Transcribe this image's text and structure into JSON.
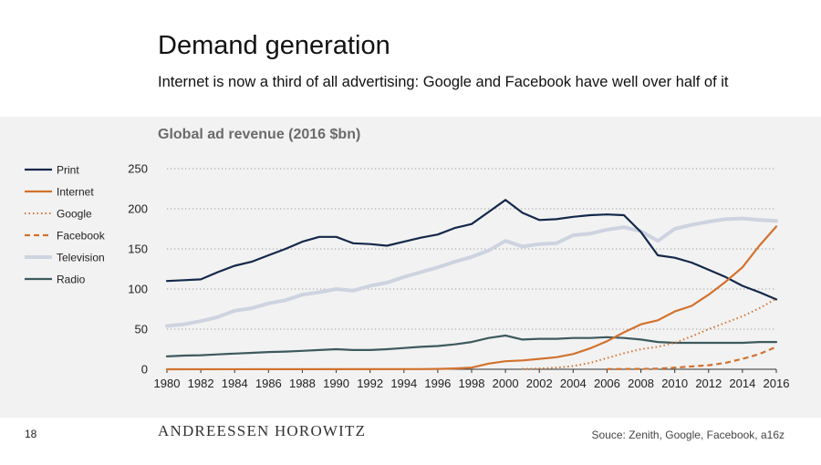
{
  "header": {
    "title": "Demand generation",
    "subtitle": "Internet is now a third of all advertising: Google and Facebook have well over half of it"
  },
  "footer": {
    "page_number": "18",
    "logo": "ANDREESSEN HOROWITZ",
    "source": "Souce: Zenith, Google, Facebook, a16z"
  },
  "chart_data": {
    "type": "line",
    "title": "Global ad revenue (2016 $bn)",
    "xlabel": "",
    "ylabel": "",
    "xlim": [
      1980,
      2016
    ],
    "ylim": [
      0,
      250
    ],
    "yticks": [
      0,
      50,
      100,
      150,
      200,
      250
    ],
    "xticks": [
      1980,
      1982,
      1984,
      1986,
      1988,
      1990,
      1992,
      1994,
      1996,
      1998,
      2000,
      2002,
      2004,
      2006,
      2008,
      2010,
      2012,
      2014,
      2016
    ],
    "grid": "horizontal dotted",
    "legend": "left",
    "series": [
      {
        "name": "Print",
        "color": "#14284b",
        "style": "solid",
        "x": [
          1980,
          1981,
          1982,
          1983,
          1984,
          1985,
          1986,
          1987,
          1988,
          1989,
          1990,
          1991,
          1992,
          1993,
          1994,
          1995,
          1996,
          1997,
          1998,
          1999,
          2000,
          2001,
          2002,
          2003,
          2004,
          2005,
          2006,
          2007,
          2008,
          2009,
          2010,
          2011,
          2012,
          2013,
          2014,
          2015,
          2016
        ],
        "y": [
          110,
          111,
          112,
          121,
          129,
          134,
          142,
          150,
          159,
          165,
          165,
          157,
          156,
          154,
          159,
          164,
          168,
          176,
          181,
          196,
          211,
          195,
          186,
          187,
          190,
          192,
          193,
          192,
          171,
          142,
          139,
          133,
          124,
          115,
          104,
          96,
          87
        ]
      },
      {
        "name": "Internet",
        "color": "#d2722e",
        "style": "solid",
        "x": [
          1980,
          1995,
          1996,
          1997,
          1998,
          1999,
          2000,
          2001,
          2002,
          2003,
          2004,
          2005,
          2006,
          2007,
          2008,
          2009,
          2010,
          2011,
          2012,
          2013,
          2014,
          2015,
          2016
        ],
        "y": [
          0,
          0.2,
          0.5,
          1,
          2,
          7,
          10,
          11,
          13,
          15,
          19,
          26,
          35,
          46,
          56,
          61,
          72,
          79,
          93,
          109,
          127,
          154,
          178
        ]
      },
      {
        "name": "Google",
        "color": "#d2722e",
        "style": "dotted",
        "x": [
          2001,
          2002,
          2003,
          2004,
          2005,
          2006,
          2007,
          2008,
          2009,
          2010,
          2011,
          2012,
          2013,
          2014,
          2015,
          2016
        ],
        "y": [
          0.5,
          1,
          2,
          4,
          8,
          14,
          20,
          25,
          28,
          33,
          41,
          50,
          58,
          66,
          76,
          88
        ]
      },
      {
        "name": "Facebook",
        "color": "#d2722e",
        "style": "dashed",
        "x": [
          2006,
          2007,
          2008,
          2009,
          2010,
          2011,
          2012,
          2013,
          2014,
          2015,
          2016
        ],
        "y": [
          0.2,
          0.3,
          0.5,
          0.8,
          2,
          3.5,
          5,
          8,
          13,
          19,
          28
        ]
      },
      {
        "name": "Television",
        "color": "#cdd3e0",
        "style": "solid",
        "x": [
          1980,
          1981,
          1982,
          1983,
          1984,
          1985,
          1986,
          1987,
          1988,
          1989,
          1990,
          1991,
          1992,
          1993,
          1994,
          1995,
          1996,
          1997,
          1998,
          1999,
          2000,
          2001,
          2002,
          2003,
          2004,
          2005,
          2006,
          2007,
          2008,
          2009,
          2010,
          2011,
          2012,
          2013,
          2014,
          2015,
          2016
        ],
        "y": [
          54,
          56,
          60,
          65,
          73,
          76,
          82,
          86,
          93,
          96,
          100,
          98,
          104,
          108,
          115,
          121,
          127,
          134,
          140,
          148,
          160,
          153,
          156,
          157,
          167,
          169,
          174,
          177,
          172,
          160,
          175,
          180,
          184,
          187,
          188,
          186,
          185
        ]
      },
      {
        "name": "Radio",
        "color": "#3d5a5e",
        "style": "solid",
        "x": [
          1980,
          1981,
          1982,
          1983,
          1984,
          1985,
          1986,
          1987,
          1988,
          1989,
          1990,
          1991,
          1992,
          1993,
          1994,
          1995,
          1996,
          1997,
          1998,
          1999,
          2000,
          2001,
          2002,
          2003,
          2004,
          2005,
          2006,
          2007,
          2008,
          2009,
          2010,
          2011,
          2012,
          2013,
          2014,
          2015,
          2016
        ],
        "y": [
          16,
          17,
          17.5,
          18.5,
          19.5,
          20.5,
          21.5,
          22,
          23,
          24,
          25,
          24,
          24,
          25,
          26.5,
          28,
          29,
          31,
          34,
          39,
          42,
          37,
          38,
          38,
          39,
          39,
          40,
          39,
          37,
          34,
          33,
          33,
          33,
          33,
          33,
          34,
          34
        ]
      }
    ]
  }
}
